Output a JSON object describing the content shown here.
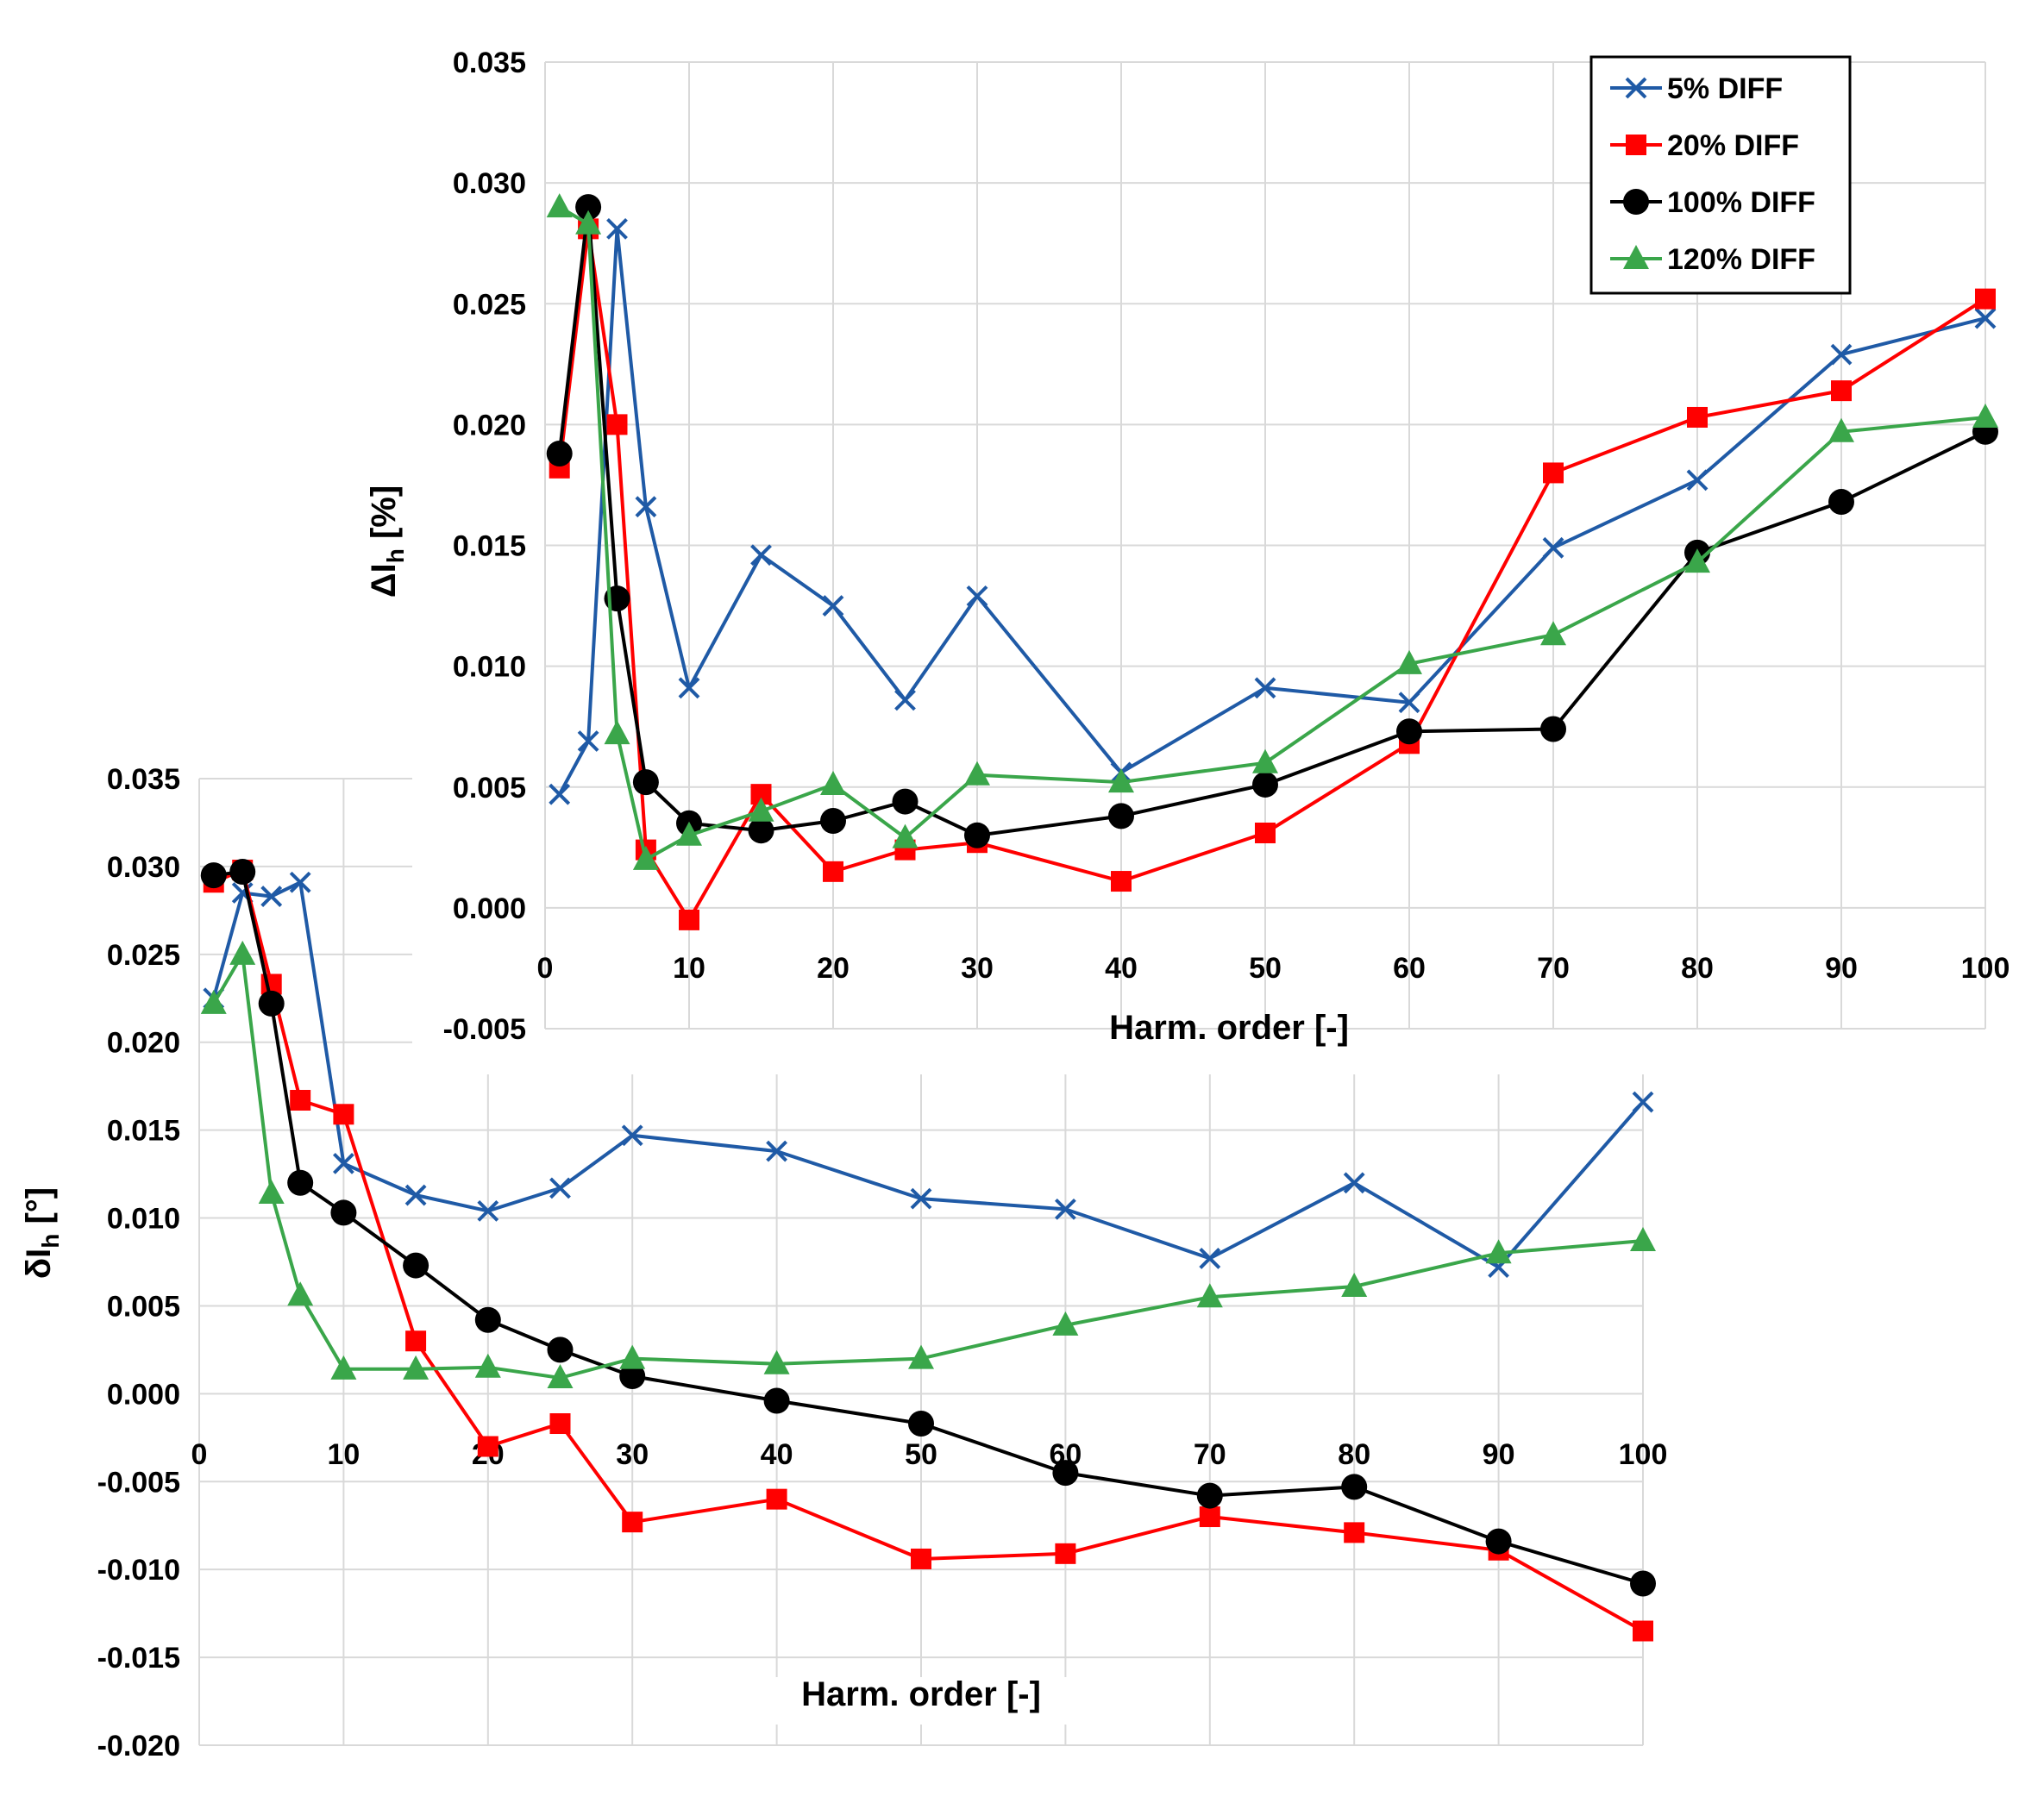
{
  "chart_data": [
    {
      "type": "line",
      "id": "top",
      "xlabel": "Harm. order [-]",
      "ylabel": "ΔI",
      "ylabel_sub": "h",
      "ylabel_unit": " [%]",
      "xlim": [
        0,
        100
      ],
      "ylim": [
        -0.005,
        0.035
      ],
      "xticks": [
        0,
        10,
        20,
        30,
        40,
        50,
        60,
        70,
        80,
        90,
        100
      ],
      "yticks": [
        -0.005,
        0.0,
        0.005,
        0.01,
        0.015,
        0.02,
        0.025,
        0.03,
        0.035
      ],
      "ytick_labels": [
        "-0.005",
        "0.000",
        "0.005",
        "0.010",
        "0.015",
        "0.020",
        "0.025",
        "0.030",
        "0.035"
      ],
      "grid": true,
      "legend": "top-right",
      "series": [
        {
          "name": "5% DIFF",
          "color": "#1f5aa6",
          "marker": "x",
          "x": [
            1,
            3,
            5,
            7,
            10,
            15,
            20,
            25,
            30,
            40,
            50,
            60,
            70,
            80,
            90,
            100
          ],
          "values": [
            0.0047,
            0.0069,
            0.0281,
            0.0166,
            0.0091,
            0.0146,
            0.0125,
            0.0086,
            0.0129,
            0.0056,
            0.0091,
            0.0085,
            0.0149,
            0.0177,
            0.0229,
            0.0244
          ]
        },
        {
          "name": "20% DIFF",
          "color": "#ff0000",
          "marker": "square",
          "x": [
            1,
            3,
            5,
            7,
            10,
            15,
            20,
            25,
            30,
            40,
            50,
            60,
            70,
            80,
            90,
            100
          ],
          "values": [
            0.0182,
            0.0281,
            0.02,
            0.0024,
            -0.0005,
            0.0047,
            0.0015,
            0.0024,
            0.0027,
            0.0011,
            0.0031,
            0.0068,
            0.018,
            0.0203,
            0.0214,
            0.0252
          ]
        },
        {
          "name": "100% DIFF",
          "color": "#000000",
          "marker": "circle",
          "x": [
            1,
            3,
            5,
            7,
            10,
            15,
            20,
            25,
            30,
            40,
            50,
            60,
            70,
            80,
            90,
            100
          ],
          "values": [
            0.0188,
            0.029,
            0.0128,
            0.0052,
            0.0035,
            0.0032,
            0.0036,
            0.0044,
            0.003,
            0.0038,
            0.0051,
            0.0073,
            0.0074,
            0.0147,
            0.0168,
            0.0197
          ]
        },
        {
          "name": "120% DIFF",
          "color": "#3aa64a",
          "marker": "triangle",
          "x": [
            1,
            3,
            5,
            7,
            10,
            15,
            20,
            25,
            30,
            40,
            50,
            60,
            70,
            80,
            90,
            100
          ],
          "values": [
            0.029,
            0.0283,
            0.0072,
            0.002,
            0.003,
            0.004,
            0.0051,
            0.0029,
            0.0055,
            0.0052,
            0.006,
            0.0101,
            0.0113,
            0.0143,
            0.0197,
            0.0203
          ]
        }
      ]
    },
    {
      "type": "line",
      "id": "bottom",
      "xlabel": "Harm. order [-]",
      "ylabel": "δI",
      "ylabel_sub": "h",
      "ylabel_unit": " [°]",
      "xlim": [
        0,
        100
      ],
      "ylim": [
        -0.02,
        0.035
      ],
      "xticks": [
        0,
        10,
        20,
        30,
        40,
        50,
        60,
        70,
        80,
        90,
        100
      ],
      "yticks": [
        -0.02,
        -0.015,
        -0.01,
        -0.005,
        0.0,
        0.005,
        0.01,
        0.015,
        0.02,
        0.025,
        0.03,
        0.035
      ],
      "ytick_labels": [
        "-0.020",
        "-0.015",
        "-0.010",
        "-0.005",
        "0.000",
        "0.005",
        "0.010",
        "0.015",
        "0.020",
        "0.025",
        "0.030",
        "0.035"
      ],
      "grid": true,
      "series": [
        {
          "name": "5% DIFF",
          "color": "#1f5aa6",
          "marker": "x",
          "x": [
            1,
            3,
            5,
            7,
            10,
            15,
            20,
            25,
            30,
            40,
            50,
            60,
            70,
            80,
            90,
            100
          ],
          "values": [
            0.0225,
            0.0285,
            0.0283,
            0.0291,
            0.0131,
            0.0113,
            0.0104,
            0.0117,
            0.0147,
            0.0138,
            0.0111,
            0.0105,
            0.0077,
            0.012,
            0.0072,
            0.0166
          ]
        },
        {
          "name": "20% DIFF",
          "color": "#ff0000",
          "marker": "square",
          "x": [
            1,
            3,
            5,
            7,
            10,
            15,
            20,
            25,
            30,
            40,
            50,
            60,
            70,
            80,
            90,
            100
          ],
          "values": [
            0.0291,
            0.0298,
            0.0233,
            0.0167,
            0.0159,
            0.003,
            -0.003,
            -0.0017,
            -0.0073,
            -0.006,
            -0.0094,
            -0.0091,
            -0.007,
            -0.0079,
            -0.0089,
            -0.0135
          ]
        },
        {
          "name": "100% DIFF",
          "color": "#000000",
          "marker": "circle",
          "x": [
            1,
            3,
            5,
            7,
            10,
            15,
            20,
            25,
            30,
            40,
            50,
            60,
            70,
            80,
            90,
            100
          ],
          "values": [
            0.0295,
            0.0297,
            0.0222,
            0.012,
            0.0103,
            0.0073,
            0.0042,
            0.0025,
            0.001,
            -0.0004,
            -0.0017,
            -0.0045,
            -0.0058,
            -0.0053,
            -0.0084,
            -0.0108
          ]
        },
        {
          "name": "120% DIFF",
          "color": "#3aa64a",
          "marker": "triangle",
          "x": [
            1,
            3,
            5,
            7,
            10,
            15,
            20,
            25,
            30,
            40,
            50,
            60,
            70,
            80,
            90,
            100
          ],
          "values": [
            0.0222,
            0.025,
            0.0114,
            0.0056,
            0.0014,
            0.0014,
            0.0015,
            0.0009,
            0.002,
            0.0017,
            0.002,
            0.0039,
            0.0055,
            0.0061,
            0.008,
            0.0087
          ]
        }
      ]
    }
  ]
}
